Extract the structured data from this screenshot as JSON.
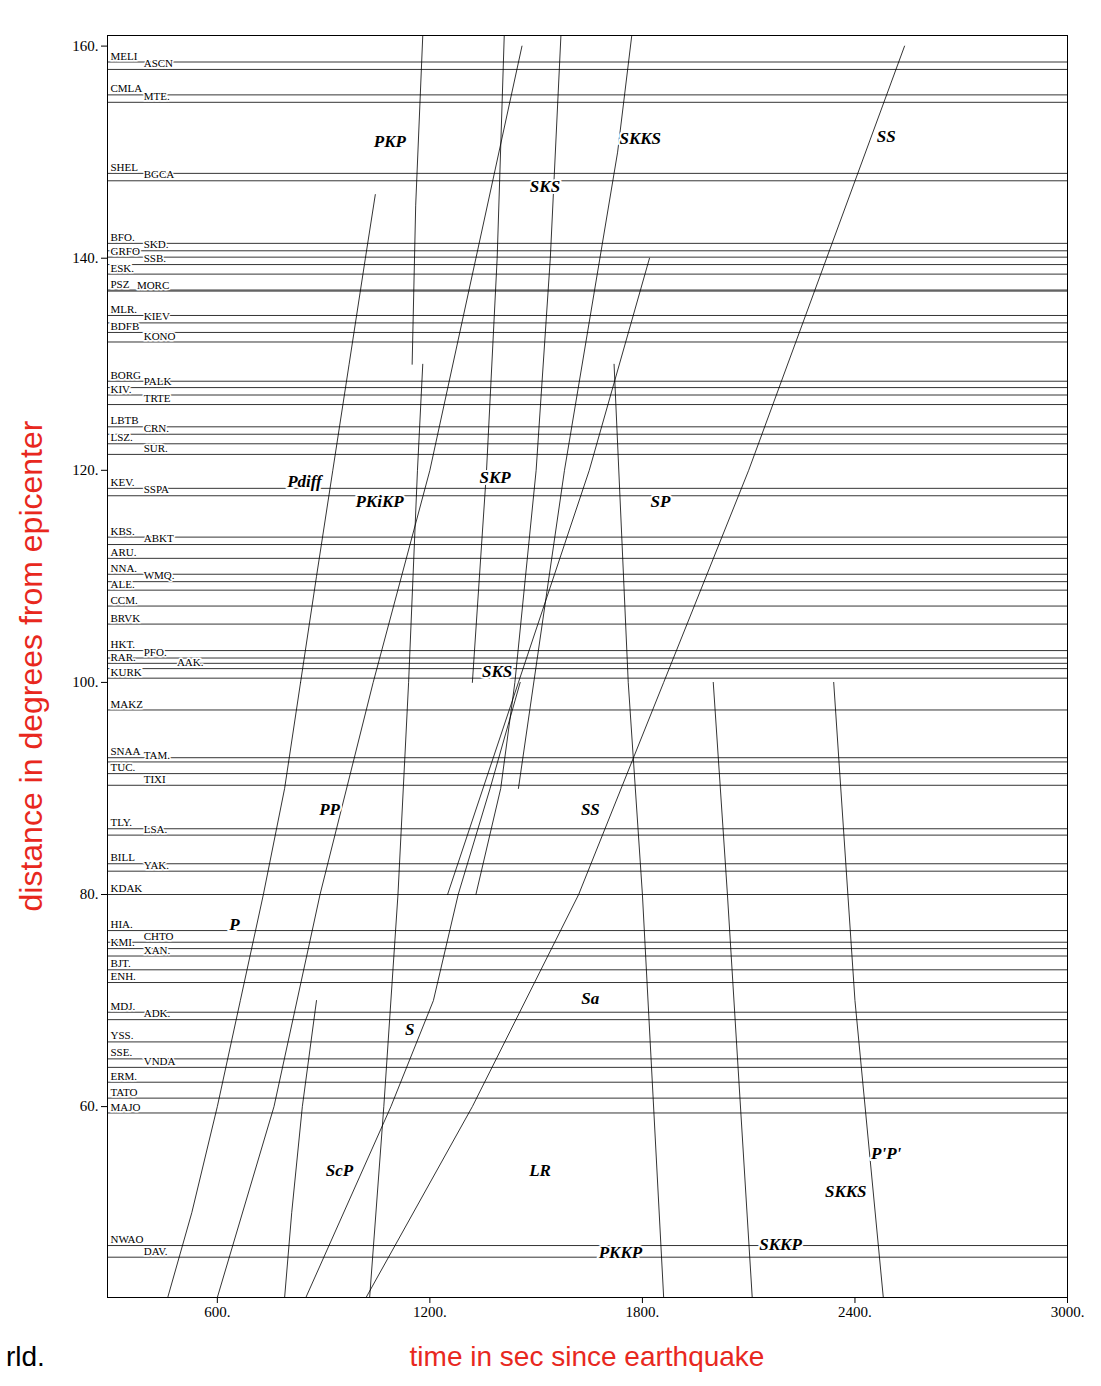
{
  "chart_data": {
    "type": "line",
    "x_label": "time in sec since earthquake",
    "y_label": "distance in degrees from epicenter",
    "caption": "rld.",
    "xlim": [
      290,
      3000
    ],
    "ylim": [
      42,
      161
    ],
    "xticks": [
      {
        "value": 600,
        "label": "600."
      },
      {
        "value": 1200,
        "label": "1200."
      },
      {
        "value": 1800,
        "label": "1800."
      },
      {
        "value": 2400,
        "label": "2400."
      },
      {
        "value": 3000,
        "label": "3000."
      }
    ],
    "yticks": [
      {
        "value": 60,
        "label": "60."
      },
      {
        "value": 80,
        "label": "80."
      },
      {
        "value": 100,
        "label": "100."
      },
      {
        "value": 120,
        "label": "120."
      },
      {
        "value": 140,
        "label": "140."
      },
      {
        "value": 160,
        "label": "160."
      }
    ],
    "stations": [
      {
        "name": "MELI",
        "distance": 158.5
      },
      {
        "name": "ASCN",
        "distance": 157.8
      },
      {
        "name": "CMLA",
        "distance": 155.4
      },
      {
        "name": "MTE.",
        "distance": 154.7
      },
      {
        "name": "SHEL",
        "distance": 148.0
      },
      {
        "name": "BGCA",
        "distance": 147.3
      },
      {
        "name": "BFO.",
        "distance": 141.4
      },
      {
        "name": "SKD.",
        "distance": 140.7
      },
      {
        "name": "GRFO",
        "distance": 140.1
      },
      {
        "name": "SSB.",
        "distance": 139.4
      },
      {
        "name": "ESK.",
        "distance": 138.5
      },
      {
        "name": "PSZ",
        "distance": 137.0
      },
      {
        "name": "MORC",
        "distance": 136.9
      },
      {
        "name": "MLR.",
        "distance": 134.6
      },
      {
        "name": "KIEV",
        "distance": 133.9
      },
      {
        "name": "BDFB",
        "distance": 133.0
      },
      {
        "name": "KONO",
        "distance": 132.1
      },
      {
        "name": "BORG",
        "distance": 128.4
      },
      {
        "name": "PALK",
        "distance": 127.8
      },
      {
        "name": "KIV.",
        "distance": 127.1
      },
      {
        "name": "TRTE",
        "distance": 126.2
      },
      {
        "name": "LBTB",
        "distance": 124.1
      },
      {
        "name": "CRN.",
        "distance": 123.4
      },
      {
        "name": "LSZ.",
        "distance": 122.5
      },
      {
        "name": "SUR.",
        "distance": 121.5
      },
      {
        "name": "KEV.",
        "distance": 118.3
      },
      {
        "name": "SSPA",
        "distance": 117.6
      },
      {
        "name": "KBS.",
        "distance": 113.7
      },
      {
        "name": "ABKT",
        "distance": 113.0
      },
      {
        "name": "ARU.",
        "distance": 111.7
      },
      {
        "name": "NNA.",
        "distance": 110.2
      },
      {
        "name": "WMQ.",
        "distance": 109.5
      },
      {
        "name": "ALE.",
        "distance": 108.7
      },
      {
        "name": "CCM.",
        "distance": 107.2
      },
      {
        "name": "BRVK",
        "distance": 105.5
      },
      {
        "name": "HKT.",
        "distance": 103.0
      },
      {
        "name": "PFO.",
        "distance": 102.3
      },
      {
        "name": "RAR.",
        "distance": 101.8
      },
      {
        "name": "AAK.",
        "distance": 101.3
      },
      {
        "name": "KURK",
        "distance": 100.4
      },
      {
        "name": "MAKZ",
        "distance": 97.4
      },
      {
        "name": "SNAA",
        "distance": 92.9
      },
      {
        "name": "TAM.",
        "distance": 92.5
      },
      {
        "name": "TUC.",
        "distance": 91.4
      },
      {
        "name": "TIXI",
        "distance": 90.3
      },
      {
        "name": "TLY.",
        "distance": 86.2
      },
      {
        "name": "LSA.",
        "distance": 85.6
      },
      {
        "name": "BILL",
        "distance": 82.9
      },
      {
        "name": "YAK.",
        "distance": 82.2
      },
      {
        "name": "KDAK",
        "distance": 80.0
      },
      {
        "name": "HIA.",
        "distance": 76.6
      },
      {
        "name": "CHTO",
        "distance": 75.5
      },
      {
        "name": "KMI.",
        "distance": 74.9
      },
      {
        "name": "XAN.",
        "distance": 74.2
      },
      {
        "name": "BJT.",
        "distance": 72.9
      },
      {
        "name": "ENH.",
        "distance": 71.7
      },
      {
        "name": "MDJ.",
        "distance": 68.9
      },
      {
        "name": "ADK.",
        "distance": 68.2
      },
      {
        "name": "YSS.",
        "distance": 66.1
      },
      {
        "name": "SSE.",
        "distance": 64.5
      },
      {
        "name": "VNDA",
        "distance": 63.7
      },
      {
        "name": "ERM.",
        "distance": 62.3
      },
      {
        "name": "TATO",
        "distance": 60.8
      },
      {
        "name": "MAJO",
        "distance": 59.4
      },
      {
        "name": "NWAO",
        "distance": 46.9
      },
      {
        "name": "DAV.",
        "distance": 45.8
      }
    ],
    "series": [
      {
        "name": "P",
        "values": [
          [
            460,
            42
          ],
          [
            528,
            50
          ],
          [
            600,
            60
          ],
          [
            665,
            70
          ],
          [
            730,
            80
          ],
          [
            790,
            90
          ],
          [
            835,
            100
          ]
        ],
        "label_at": [
          [
            648,
            77.2
          ]
        ]
      },
      {
        "name": "Pdiff",
        "values": [
          [
            835,
            100
          ],
          [
            880,
            110
          ],
          [
            926,
            120
          ],
          [
            972,
            130
          ],
          [
            1018,
            140
          ],
          [
            1046,
            146
          ]
        ],
        "label_at": [
          [
            846,
            118.9
          ]
        ]
      },
      {
        "name": "PP",
        "values": [
          [
            600,
            42
          ],
          [
            760,
            60
          ],
          [
            890,
            80
          ],
          [
            1040,
            100
          ],
          [
            1200,
            120
          ],
          [
            1330,
            140
          ],
          [
            1460,
            160
          ]
        ],
        "label_at": [
          [
            917,
            88.0
          ]
        ]
      },
      {
        "name": "ScP",
        "values": [
          [
            790,
            42
          ],
          [
            810,
            50
          ],
          [
            840,
            60
          ],
          [
            880,
            70
          ]
        ],
        "label_at": [
          [
            945,
            54.0
          ]
        ]
      },
      {
        "name": "PKiKP",
        "values": [
          [
            1030,
            42
          ],
          [
            1070,
            60
          ],
          [
            1110,
            80
          ],
          [
            1140,
            100
          ],
          [
            1165,
            120
          ],
          [
            1180,
            130
          ]
        ],
        "label_at": [
          [
            1058,
            117.1
          ]
        ]
      },
      {
        "name": "PKP",
        "values": [
          [
            1150,
            130
          ],
          [
            1160,
            145
          ],
          [
            1180,
            161
          ]
        ],
        "label_at": [
          [
            1087,
            151.0
          ]
        ]
      },
      {
        "name": "S",
        "values": [
          [
            850,
            42
          ],
          [
            1090,
            60
          ],
          [
            1210,
            70
          ],
          [
            1280,
            80
          ],
          [
            1370,
            90
          ],
          [
            1455,
            100
          ]
        ],
        "label_at": [
          [
            1143,
            67.3
          ]
        ]
      },
      {
        "name": "SKS",
        "values": [
          [
            1330,
            80
          ],
          [
            1400,
            90
          ],
          [
            1440,
            100
          ],
          [
            1500,
            120
          ],
          [
            1540,
            140
          ],
          [
            1570,
            161
          ]
        ],
        "label_at": [
          [
            1390,
            101.0
          ],
          [
            1525,
            146.8
          ]
        ]
      },
      {
        "name": "SKP",
        "values": [
          [
            1320,
            100
          ],
          [
            1360,
            120
          ],
          [
            1390,
            140
          ],
          [
            1410,
            161
          ]
        ],
        "label_at": [
          [
            1384,
            119.3
          ]
        ]
      },
      {
        "name": "SKKS",
        "values": [
          [
            1450,
            90
          ],
          [
            1580,
            120
          ],
          [
            1730,
            150
          ],
          [
            1770,
            161
          ]
        ],
        "label_at": [
          [
            1794,
            151.3
          ],
          [
            2374,
            52.0
          ]
        ]
      },
      {
        "name": "SP",
        "values": [
          [
            1250,
            80
          ],
          [
            1450,
            100
          ],
          [
            1650,
            120
          ],
          [
            1820,
            140
          ]
        ],
        "label_at": [
          [
            1851,
            117.1
          ]
        ]
      },
      {
        "name": "SS",
        "values": [
          [
            1020,
            42
          ],
          [
            1320,
            60
          ],
          [
            1620,
            80
          ],
          [
            1860,
            100
          ],
          [
            2100,
            120
          ],
          [
            2320,
            140
          ],
          [
            2540,
            160
          ]
        ],
        "label_at": [
          [
            1653,
            88.0
          ],
          [
            2488,
            151.5
          ]
        ]
      },
      {
        "name": "Sa",
        "values": [],
        "label_at": [
          [
            1653,
            70.2
          ]
        ]
      },
      {
        "name": "LR",
        "values": [],
        "label_at": [
          [
            1511,
            54.0
          ]
        ]
      },
      {
        "name": "PKKP",
        "values": [
          [
            1860,
            42
          ],
          [
            1800,
            80
          ],
          [
            1760,
            100
          ],
          [
            1720,
            130
          ]
        ],
        "label_at": [
          [
            1738,
            46.2
          ]
        ]
      },
      {
        "name": "SKKP",
        "values": [
          [
            2110,
            42
          ],
          [
            2040,
            80
          ],
          [
            2000,
            100
          ]
        ],
        "label_at": [
          [
            2190,
            47.0
          ]
        ]
      },
      {
        "name": "P'P'",
        "values": [
          [
            2480,
            42
          ],
          [
            2400,
            70
          ],
          [
            2340,
            100
          ]
        ],
        "label_at": [
          [
            2488,
            55.6
          ]
        ]
      }
    ]
  }
}
